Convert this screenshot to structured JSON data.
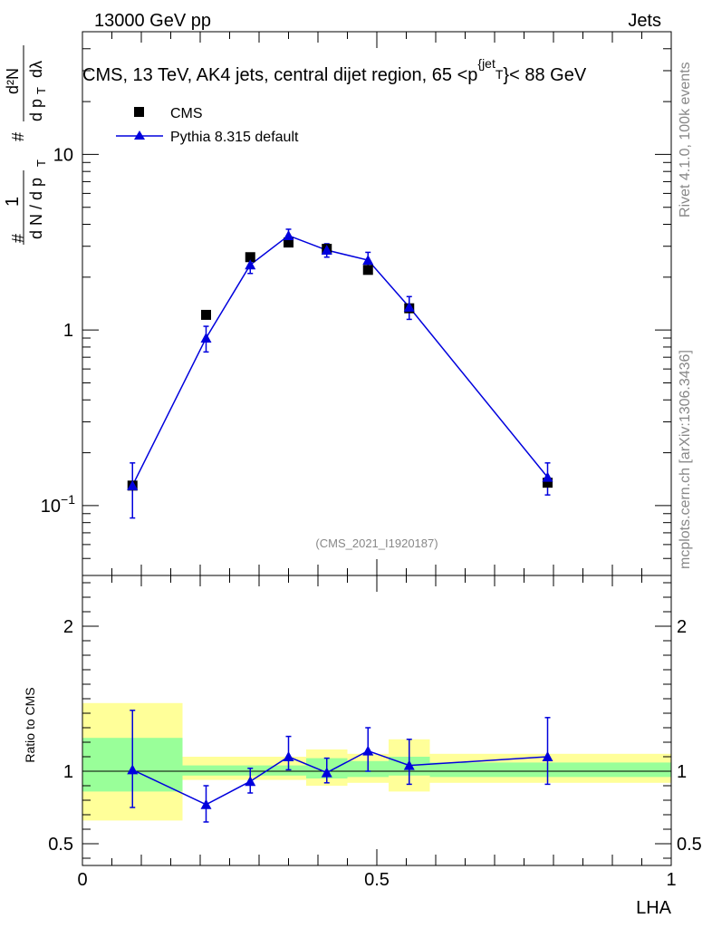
{
  "header": {
    "left": "13000 GeV pp",
    "right": "Jets"
  },
  "title": "CMS, 13 TeV, AK4 jets, central dijet region, 65 <p_T^{jet}< 88 GeV",
  "side_text": {
    "top": "Rivet 4.1.0,  100k events",
    "bottom": "mcplots.cern.ch [arXiv:1306.3436]"
  },
  "analysis_label": "(CMS_2021_I1920187)",
  "ylabel_main": "#frac{1}{dN / dp_T} # #frac{d^2N}{dp_T dλ}",
  "colors": {
    "mc": "#0000dd",
    "band_inner": "#99ff99",
    "band_outer": "#ffff99",
    "data": "#000000"
  },
  "chart_data": [
    {
      "type": "scatter",
      "panel": "main",
      "yscale": "log",
      "xlim": [
        0,
        1
      ],
      "ylim": [
        0.04,
        50
      ],
      "ytick_labels": [
        "10^-1",
        "1",
        "10"
      ],
      "legend": [
        "CMS",
        "Pythia 8.315 default"
      ],
      "legend_position": "top-left",
      "series": [
        {
          "name": "CMS",
          "marker": "square",
          "x": [
            0.085,
            0.21,
            0.285,
            0.35,
            0.415,
            0.485,
            0.555,
            0.79
          ],
          "y": [
            0.13,
            1.22,
            2.6,
            3.15,
            2.9,
            2.2,
            1.33,
            0.135
          ],
          "yerr": [
            0.005,
            0.03,
            0.08,
            0.1,
            0.1,
            0.08,
            0.05,
            0.005
          ]
        },
        {
          "name": "Pythia 8.315 default",
          "marker": "triangle",
          "x": [
            0.085,
            0.21,
            0.285,
            0.35,
            0.415,
            0.485,
            0.555,
            0.79
          ],
          "y": [
            0.13,
            0.9,
            2.35,
            3.45,
            2.85,
            2.5,
            1.35,
            0.145
          ],
          "yerr": [
            0.045,
            0.15,
            0.25,
            0.3,
            0.25,
            0.27,
            0.2,
            0.03
          ]
        }
      ]
    },
    {
      "type": "scatter",
      "panel": "ratio",
      "xlabel": "LHA",
      "ylabel": "Ratio to CMS",
      "xlim": [
        0,
        1
      ],
      "ylim": [
        0.35,
        2.35
      ],
      "xtick_labels": [
        "0",
        "0.5",
        "1"
      ],
      "ytick_labels": [
        "0.5",
        "1",
        "2"
      ],
      "bands": [
        {
          "x0": 0.0,
          "x1": 0.17,
          "inner": [
            0.86,
            1.23
          ],
          "outer": [
            0.66,
            1.47
          ]
        },
        {
          "x0": 0.17,
          "x1": 0.38,
          "inner": [
            0.97,
            1.04
          ],
          "outer": [
            0.94,
            1.1
          ]
        },
        {
          "x0": 0.38,
          "x1": 0.45,
          "inner": [
            0.95,
            1.09
          ],
          "outer": [
            0.9,
            1.15
          ]
        },
        {
          "x0": 0.45,
          "x1": 0.52,
          "inner": [
            0.96,
            1.07
          ],
          "outer": [
            0.92,
            1.12
          ]
        },
        {
          "x0": 0.52,
          "x1": 0.59,
          "inner": [
            0.97,
            1.1
          ],
          "outer": [
            0.86,
            1.22
          ]
        },
        {
          "x0": 0.59,
          "x1": 1.0,
          "inner": [
            0.96,
            1.06
          ],
          "outer": [
            0.92,
            1.12
          ]
        }
      ],
      "series": [
        {
          "name": "Pythia 8.315 default",
          "x": [
            0.085,
            0.21,
            0.285,
            0.35,
            0.415,
            0.485,
            0.555,
            0.79
          ],
          "y": [
            1.01,
            0.77,
            0.93,
            1.1,
            0.99,
            1.14,
            1.04,
            1.1
          ],
          "ylo": [
            0.75,
            0.65,
            0.85,
            1.01,
            0.92,
            1.0,
            0.91,
            0.91
          ],
          "yhi": [
            1.42,
            0.9,
            1.02,
            1.24,
            1.09,
            1.3,
            1.22,
            1.37
          ]
        }
      ]
    }
  ]
}
